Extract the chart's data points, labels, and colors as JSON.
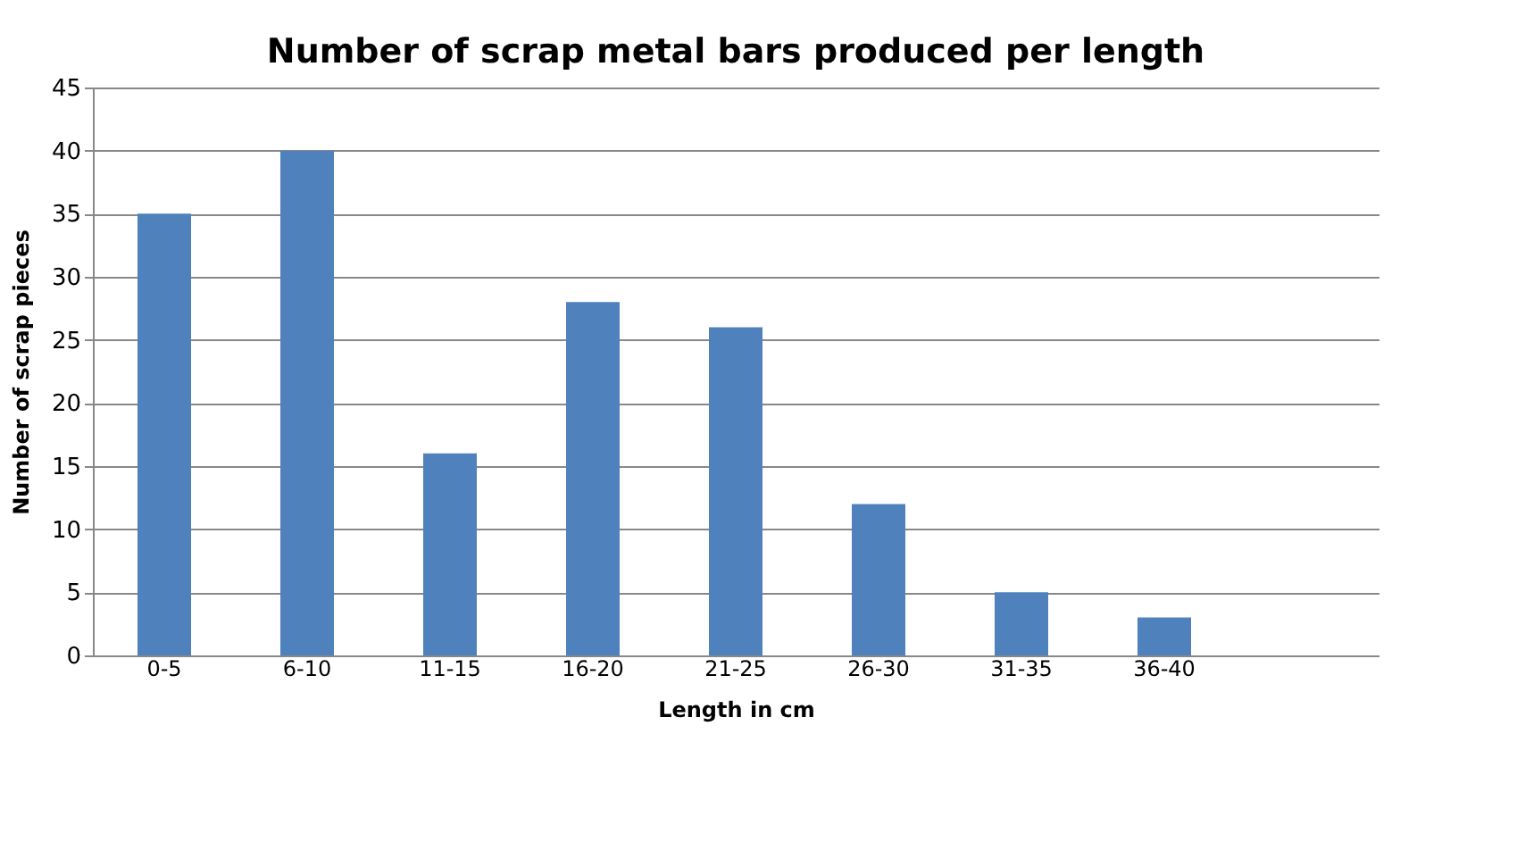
{
  "chart_data": {
    "type": "bar",
    "title": "Number of scrap metal bars produced per length",
    "xlabel": "Length in cm",
    "ylabel": "Number of scrap pieces",
    "categories": [
      "0-5",
      "6-10",
      "11-15",
      "16-20",
      "21-25",
      "26-30",
      "31-35",
      "36-40",
      null
    ],
    "values": [
      35,
      40,
      16,
      28,
      26,
      12,
      5,
      3,
      null
    ],
    "color": "#4f81bd",
    "ylim": [
      0,
      45
    ],
    "yticks": [
      0,
      5,
      10,
      15,
      20,
      25,
      30,
      35,
      40,
      45
    ],
    "grid": "y"
  }
}
